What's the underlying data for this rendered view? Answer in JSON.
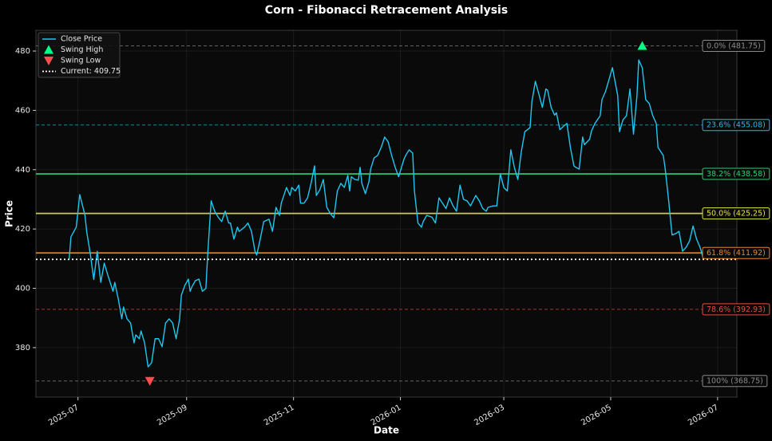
{
  "chart_data": {
    "type": "line",
    "title": "Corn - Fibonacci Retracement Analysis",
    "xlabel": "Date",
    "ylabel": "Price",
    "x": [
      "2025-06-26",
      "2025-06-27",
      "2025-06-30",
      "2025-07-02",
      "2025-07-05",
      "2025-07-06",
      "2025-07-08",
      "2025-07-10",
      "2025-07-12",
      "2025-07-14",
      "2025-07-16",
      "2025-07-18",
      "2025-07-21",
      "2025-07-22",
      "2025-07-24",
      "2025-07-26",
      "2025-07-27",
      "2025-07-29",
      "2025-07-31",
      "2025-08-02",
      "2025-08-03",
      "2025-08-05",
      "2025-08-06",
      "2025-08-08",
      "2025-08-10",
      "2025-08-12",
      "2025-08-14",
      "2025-08-16",
      "2025-08-18",
      "2025-08-20",
      "2025-08-22",
      "2025-08-24",
      "2025-08-26",
      "2025-08-28",
      "2025-08-29",
      "2025-08-31",
      "2025-09-02",
      "2025-09-03",
      "2025-09-04",
      "2025-09-06",
      "2025-09-08",
      "2025-09-10",
      "2025-09-12",
      "2025-09-13",
      "2025-09-15",
      "2025-09-17",
      "2025-09-19",
      "2025-09-21",
      "2025-09-23",
      "2025-09-25",
      "2025-09-26",
      "2025-09-28",
      "2025-09-30",
      "2025-10-01",
      "2025-10-04",
      "2025-10-06",
      "2025-10-08",
      "2025-10-10",
      "2025-10-11",
      "2025-10-13",
      "2025-10-15",
      "2025-10-18",
      "2025-10-20",
      "2025-10-22",
      "2025-10-24",
      "2025-10-25",
      "2025-10-28",
      "2025-10-30",
      "2025-10-31",
      "2025-11-02",
      "2025-11-04",
      "2025-11-05",
      "2025-11-07",
      "2025-11-09",
      "2025-11-11",
      "2025-11-13",
      "2025-11-14",
      "2025-11-16",
      "2025-11-18",
      "2025-11-20",
      "2025-11-22",
      "2025-11-24",
      "2025-11-26",
      "2025-11-28",
      "2025-11-30",
      "2025-12-02",
      "2025-12-03",
      "2025-12-04",
      "2025-12-06",
      "2025-12-08",
      "2025-12-09",
      "2025-12-10",
      "2025-12-12",
      "2025-12-14",
      "2025-12-15",
      "2025-12-17",
      "2025-12-19",
      "2025-12-21",
      "2025-12-23",
      "2025-12-25",
      "2025-12-27",
      "2025-12-29",
      "2025-12-31",
      "2026-01-03",
      "2026-01-04",
      "2026-01-06",
      "2026-01-08",
      "2026-01-09",
      "2026-01-11",
      "2026-01-13",
      "2026-01-14",
      "2026-01-16",
      "2026-01-19",
      "2026-01-21",
      "2026-01-23",
      "2026-01-25",
      "2026-01-27",
      "2026-01-29",
      "2026-01-31",
      "2026-02-02",
      "2026-02-04",
      "2026-02-06",
      "2026-02-08",
      "2026-02-10",
      "2026-02-13",
      "2026-02-15",
      "2026-02-17",
      "2026-02-19",
      "2026-02-20",
      "2026-02-23",
      "2026-02-25",
      "2026-02-27",
      "2026-03-01",
      "2026-03-03",
      "2026-03-05",
      "2026-03-07",
      "2026-03-09",
      "2026-03-11",
      "2026-03-13",
      "2026-03-16",
      "2026-03-17",
      "2026-03-19",
      "2026-03-21",
      "2026-03-23",
      "2026-03-25",
      "2026-03-26",
      "2026-03-28",
      "2026-03-30",
      "2026-03-31",
      "2026-04-02",
      "2026-04-04",
      "2026-04-06",
      "2026-04-08",
      "2026-04-10",
      "2026-04-11",
      "2026-04-13",
      "2026-04-15",
      "2026-04-16",
      "2026-04-19",
      "2026-04-20",
      "2026-04-22",
      "2026-04-25",
      "2026-04-26",
      "2026-04-28",
      "2026-04-30",
      "2026-05-02",
      "2026-05-05",
      "2026-05-06",
      "2026-05-08",
      "2026-05-10",
      "2026-05-12",
      "2026-05-14",
      "2026-05-16",
      "2026-05-17",
      "2026-05-19",
      "2026-05-21",
      "2026-05-23",
      "2026-05-25",
      "2026-05-27",
      "2026-05-28",
      "2026-05-31",
      "2026-06-01",
      "2026-06-03",
      "2026-06-05",
      "2026-06-07",
      "2026-06-09",
      "2026-06-11",
      "2026-06-13",
      "2026-06-15",
      "2026-06-17",
      "2026-06-19",
      "2026-06-21",
      "2026-06-23"
    ],
    "series": [
      {
        "name": "Close Price",
        "color": "#1ec8f0",
        "values": [
          410,
          417.4,
          420.6,
          431.6,
          424.6,
          419,
          411.7,
          403,
          412.5,
          402,
          408.5,
          404.5,
          399,
          402,
          396.4,
          389.7,
          393.7,
          389.7,
          388.3,
          381.6,
          384.3,
          383,
          385.6,
          381.6,
          373.5,
          374.9,
          383,
          383,
          380.3,
          388.3,
          389.7,
          388.3,
          383,
          389.7,
          397.7,
          401,
          403.1,
          399,
          400.5,
          402.6,
          403.1,
          399,
          400,
          411.2,
          429.5,
          426,
          424,
          422.5,
          426,
          422,
          422,
          416.6,
          420.6,
          419.2,
          420.6,
          422,
          419.2,
          412.5,
          411.2,
          416.6,
          422.5,
          423.3,
          419.2,
          427.3,
          424.6,
          428.7,
          434,
          431.3,
          434,
          432.8,
          434.8,
          428.7,
          428.7,
          430.5,
          435.4,
          441.3,
          431.3,
          433.2,
          436.7,
          427.3,
          425.2,
          423.8,
          432.8,
          435.4,
          434,
          438.1,
          432.8,
          437.6,
          436.7,
          436.5,
          440.8,
          435.4,
          431.9,
          435.9,
          440.2,
          444,
          444.8,
          447.5,
          451,
          449.4,
          444.8,
          440.8,
          437.6,
          443.5,
          444.8,
          446.7,
          445.6,
          432.8,
          422,
          420.6,
          422.5,
          424.6,
          424,
          422,
          430.5,
          428.7,
          426.9,
          430.5,
          427.8,
          426,
          434.8,
          430,
          429.5,
          427.8,
          431.3,
          429.5,
          426.9,
          426,
          427.3,
          427.8,
          427.8,
          438.6,
          434,
          432.8,
          446.7,
          440.8,
          436.7,
          446.1,
          452.8,
          454.2,
          462.8,
          469.8,
          465.5,
          461,
          467.2,
          466.8,
          461,
          458.4,
          459.2,
          453.5,
          454.6,
          455.6,
          447.5,
          441.3,
          440.8,
          440.2,
          451,
          448.4,
          450.3,
          453,
          455.6,
          458.2,
          463.6,
          466.3,
          470.3,
          474.4,
          465,
          452.8,
          456.8,
          458.2,
          467.2,
          452,
          465,
          477,
          474.4,
          463.6,
          462.3,
          458.2,
          455.6,
          447.5,
          444.8,
          440.8,
          430,
          418,
          418.4,
          419.2,
          412.5,
          413.8,
          416,
          421,
          416.6,
          413.8,
          409.75
        ]
      }
    ],
    "swing_high": {
      "name": "Swing High",
      "x": "2026-05-19",
      "value": 481.75,
      "color": "#00ff88"
    },
    "swing_low": {
      "name": "Swing Low",
      "x": "2025-08-11",
      "value": 368.75,
      "color": "#ff4d4d"
    },
    "current": {
      "name": "Current: 409.75",
      "value": 409.75,
      "color": "#ffffff"
    },
    "levels": [
      {
        "label": "0.0% (481.75)",
        "value": 481.75,
        "color": "#8a8a8a",
        "style": "dashed"
      },
      {
        "label": "23.6% (455.08)",
        "value": 455.08,
        "color": "#29b6e6",
        "style": "dashed"
      },
      {
        "label": "38.2% (438.58)",
        "value": 438.58,
        "color": "#2ecc71",
        "style": "solid"
      },
      {
        "label": "50.0% (425.25)",
        "value": 425.25,
        "color": "#e3e338",
        "style": "solid"
      },
      {
        "label": "61.8% (411.92)",
        "value": 411.92,
        "color": "#e6862a",
        "style": "solid"
      },
      {
        "label": "78.6% (392.93)",
        "value": 392.93,
        "color": "#e74c3c",
        "style": "dashed"
      },
      {
        "label": "100% (368.75)",
        "value": 368.75,
        "color": "#8a8a8a",
        "style": "dashed"
      }
    ],
    "xlim": [
      "2025-06-07",
      "2026-07-12"
    ],
    "xticks": [
      {
        "value": "2025-07-01",
        "label": "2025-07"
      },
      {
        "value": "2025-09-01",
        "label": "2025-09"
      },
      {
        "value": "2025-11-01",
        "label": "2025-11"
      },
      {
        "value": "2026-01-01",
        "label": "2026-01"
      },
      {
        "value": "2026-03-01",
        "label": "2026-03"
      },
      {
        "value": "2026-05-01",
        "label": "2026-05"
      },
      {
        "value": "2026-07-01",
        "label": "2026-07"
      }
    ],
    "ylim": [
      363.3,
      487.0
    ],
    "yticks": [
      380,
      400,
      420,
      440,
      460,
      480
    ],
    "grid": true,
    "legend": "upper left"
  }
}
